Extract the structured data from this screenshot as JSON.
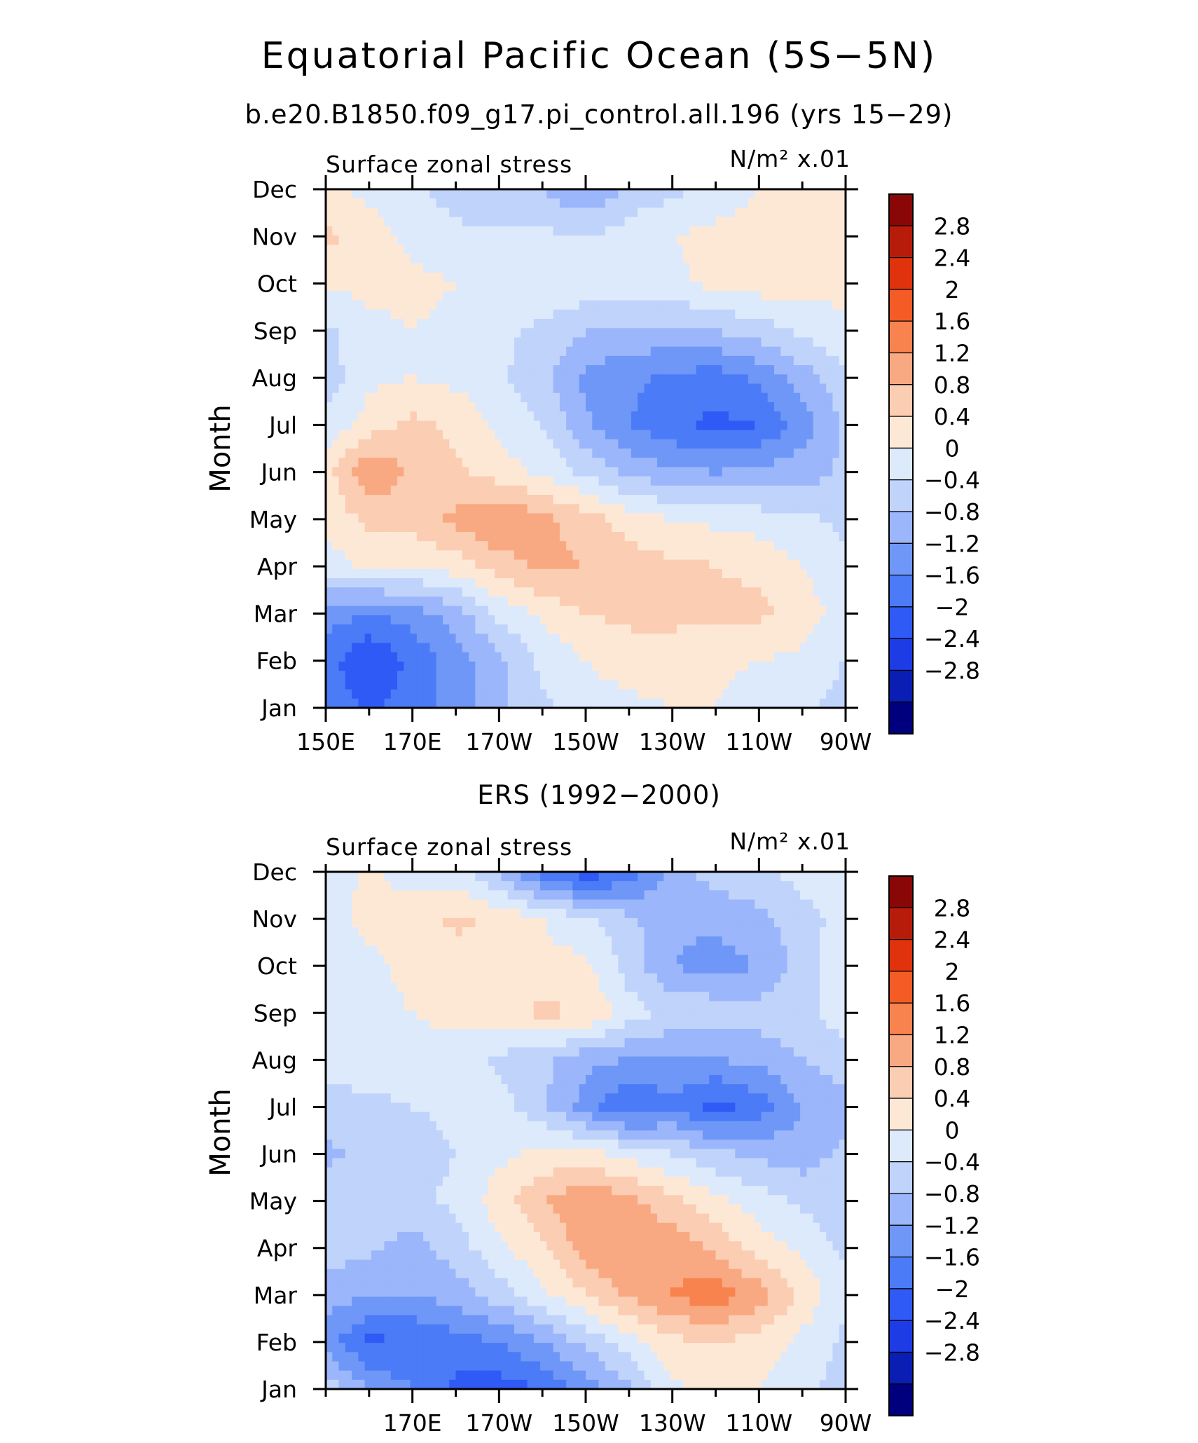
{
  "figure": {
    "title": "Equatorial Pacific Ocean (5S−5N)",
    "subtitle": "b.e20.B1850.f09_g17.pi_control.all.196 (yrs 15−29)"
  },
  "chart_data": [
    {
      "type": "heatmap",
      "title": "",
      "left_text": "Surface zonal stress",
      "right_text": "N/m² x.01",
      "xlabel": "",
      "ylabel": "Month",
      "x_ticks": [
        "150E",
        "170E",
        "170W",
        "150W",
        "130W",
        "110W",
        "90W"
      ],
      "y_ticks": [
        "Jan",
        "Feb",
        "Mar",
        "Apr",
        "May",
        "Jun",
        "Jul",
        "Aug",
        "Sep",
        "Oct",
        "Nov",
        "Dec"
      ],
      "x_lon": [
        150,
        160,
        170,
        180,
        190,
        200,
        210,
        220,
        230,
        240,
        250,
        260,
        270
      ],
      "colorbar_labels": [
        "2.8",
        "2.4",
        "2",
        "1.6",
        "1.2",
        "0.8",
        "0.4",
        "0",
        "−0.4",
        "−0.8",
        "−1.2",
        "−1.6",
        "−2",
        "−2.4",
        "−2.8"
      ],
      "values": [
        [
          -1.3,
          -1.7,
          -1.4,
          -1.0,
          -0.5,
          -0.1,
          0.2,
          0.3,
          0.4,
          0.4,
          0.2,
          0.1,
          -0.2
        ],
        [
          -1.4,
          -2.0,
          -1.5,
          -1.0,
          -0.5,
          0.1,
          0.4,
          0.6,
          0.6,
          0.5,
          0.4,
          0.3,
          0.0
        ],
        [
          -1.0,
          -1.2,
          -1.0,
          -0.6,
          0.1,
          0.5,
          0.8,
          0.9,
          0.9,
          0.9,
          0.9,
          0.6,
          0.2
        ],
        [
          0.2,
          0.5,
          0.4,
          0.6,
          1.0,
          1.3,
          1.2,
          1.0,
          0.9,
          0.8,
          0.7,
          0.4,
          0.1
        ],
        [
          0.5,
          0.9,
          1.0,
          1.3,
          1.6,
          1.3,
          1.0,
          0.6,
          0.4,
          0.3,
          0.2,
          0.1,
          -0.1
        ],
        [
          0.6,
          1.6,
          1.1,
          0.9,
          0.6,
          0.3,
          -0.1,
          -0.5,
          -0.7,
          -0.8,
          -0.7,
          -0.6,
          -0.3
        ],
        [
          0.1,
          0.6,
          0.9,
          0.7,
          0.3,
          0.0,
          -0.7,
          -1.2,
          -1.5,
          -1.7,
          -1.6,
          -1.0,
          -0.3
        ],
        [
          -0.2,
          0.3,
          0.4,
          0.3,
          0.1,
          -0.3,
          -0.9,
          -1.1,
          -1.3,
          -1.4,
          -1.1,
          -0.6,
          -0.1
        ],
        [
          -0.1,
          0.3,
          0.4,
          0.3,
          0.1,
          -0.1,
          -0.4,
          -0.5,
          -0.5,
          -0.4,
          -0.2,
          0.1,
          0.3
        ],
        [
          0.5,
          0.5,
          0.5,
          0.4,
          0.4,
          0.4,
          0.3,
          0.2,
          0.3,
          0.5,
          0.6,
          0.6,
          0.5
        ],
        [
          0.9,
          0.6,
          0.3,
          0.1,
          0.1,
          0.1,
          0.0,
          0.2,
          0.4,
          0.5,
          0.5,
          0.6,
          0.5
        ],
        [
          0.5,
          0.3,
          0.1,
          -0.2,
          -0.3,
          -0.4,
          -0.8,
          -0.3,
          -0.1,
          0.2,
          0.4,
          0.5,
          0.4
        ]
      ]
    },
    {
      "type": "heatmap",
      "title": "ERS (1992−2000)",
      "left_text": "Surface zonal stress",
      "right_text": "N/m² x.01",
      "xlabel": "",
      "ylabel": "Month",
      "x_ticks": [
        "170E",
        "170W",
        "150W",
        "130W",
        "110W",
        "90W"
      ],
      "y_ticks": [
        "Jan",
        "Feb",
        "Mar",
        "Apr",
        "May",
        "Jun",
        "Jul",
        "Aug",
        "Sep",
        "Oct",
        "Nov",
        "Dec"
      ],
      "x_lon": [
        150,
        160,
        170,
        180,
        190,
        200,
        210,
        220,
        230,
        240,
        250,
        260,
        270
      ],
      "colorbar_labels": [
        "2.8",
        "2.4",
        "2",
        "1.6",
        "1.2",
        "0.8",
        "0.4",
        "0",
        "−0.4",
        "−0.8",
        "−1.2",
        "−1.6",
        "−2",
        "−2.4",
        "−2.8"
      ],
      "values": [
        [
          -0.1,
          -0.8,
          -1.2,
          -1.7,
          -1.8,
          -1.6,
          -1.0,
          -0.5,
          0.3,
          0.5,
          0.4,
          0.1,
          -0.2
        ],
        [
          -1.0,
          -1.7,
          -1.6,
          -1.4,
          -1.2,
          -0.8,
          -0.3,
          0.2,
          0.7,
          0.8,
          0.6,
          0.3,
          -0.1
        ],
        [
          -0.6,
          -0.8,
          -0.8,
          -0.6,
          -0.2,
          0.3,
          0.8,
          1.3,
          1.6,
          1.9,
          1.4,
          0.7,
          0.1
        ],
        [
          -0.2,
          -0.3,
          -0.6,
          -0.2,
          0.3,
          0.7,
          1.4,
          1.6,
          1.5,
          1.1,
          0.6,
          0.3,
          -0.1
        ],
        [
          -0.1,
          -0.2,
          -0.1,
          0.1,
          0.6,
          1.2,
          1.6,
          1.3,
          0.9,
          0.5,
          0.2,
          -0.1,
          -0.2
        ],
        [
          -0.5,
          -0.3,
          -0.2,
          0.0,
          0.3,
          0.5,
          0.5,
          0.3,
          0.0,
          -0.3,
          -0.5,
          -0.6,
          -0.3
        ],
        [
          -0.1,
          -0.1,
          0.0,
          0.1,
          0.2,
          -0.3,
          -1.0,
          -1.6,
          -1.3,
          -1.8,
          -1.4,
          -0.8,
          -0.5
        ],
        [
          0.1,
          0.2,
          0.3,
          0.2,
          -0.1,
          -0.3,
          -0.7,
          -0.8,
          -0.9,
          -0.8,
          -0.7,
          -0.4,
          -0.2
        ],
        [
          0.1,
          0.3,
          0.4,
          0.5,
          0.6,
          0.9,
          0.8,
          0.2,
          -0.1,
          -0.1,
          -0.2,
          -0.1,
          0.2
        ],
        [
          0.2,
          0.3,
          0.5,
          0.6,
          0.6,
          0.5,
          0.5,
          -0.2,
          -0.8,
          -1.0,
          -0.8,
          -0.2,
          0.3
        ],
        [
          0.3,
          0.5,
          0.6,
          0.9,
          0.7,
          0.4,
          0.1,
          -0.3,
          -0.7,
          -0.7,
          -0.5,
          -0.2,
          0.2
        ],
        [
          0.1,
          0.5,
          0.2,
          0.2,
          -0.5,
          -1.4,
          -1.9,
          -1.5,
          -0.6,
          -0.2,
          -0.1,
          0.2,
          0.2
        ]
      ]
    }
  ],
  "colors": {
    "levels": [
      -2.8,
      -2.4,
      -2.0,
      -1.6,
      -1.2,
      -0.8,
      -0.4,
      0.0,
      0.4,
      0.8,
      1.2,
      1.6,
      2.0,
      2.4,
      2.8
    ],
    "palette": [
      "#00007f",
      "#0a1eb4",
      "#1e3ce6",
      "#2f5af5",
      "#4b7bf7",
      "#6e97f7",
      "#9bb6fa",
      "#c0d3fb",
      "#ddeafc",
      "#fde8d6",
      "#fbcdb2",
      "#f9a982",
      "#f8834f",
      "#f45c25",
      "#e0330d",
      "#b71c0a",
      "#8a0707"
    ]
  }
}
